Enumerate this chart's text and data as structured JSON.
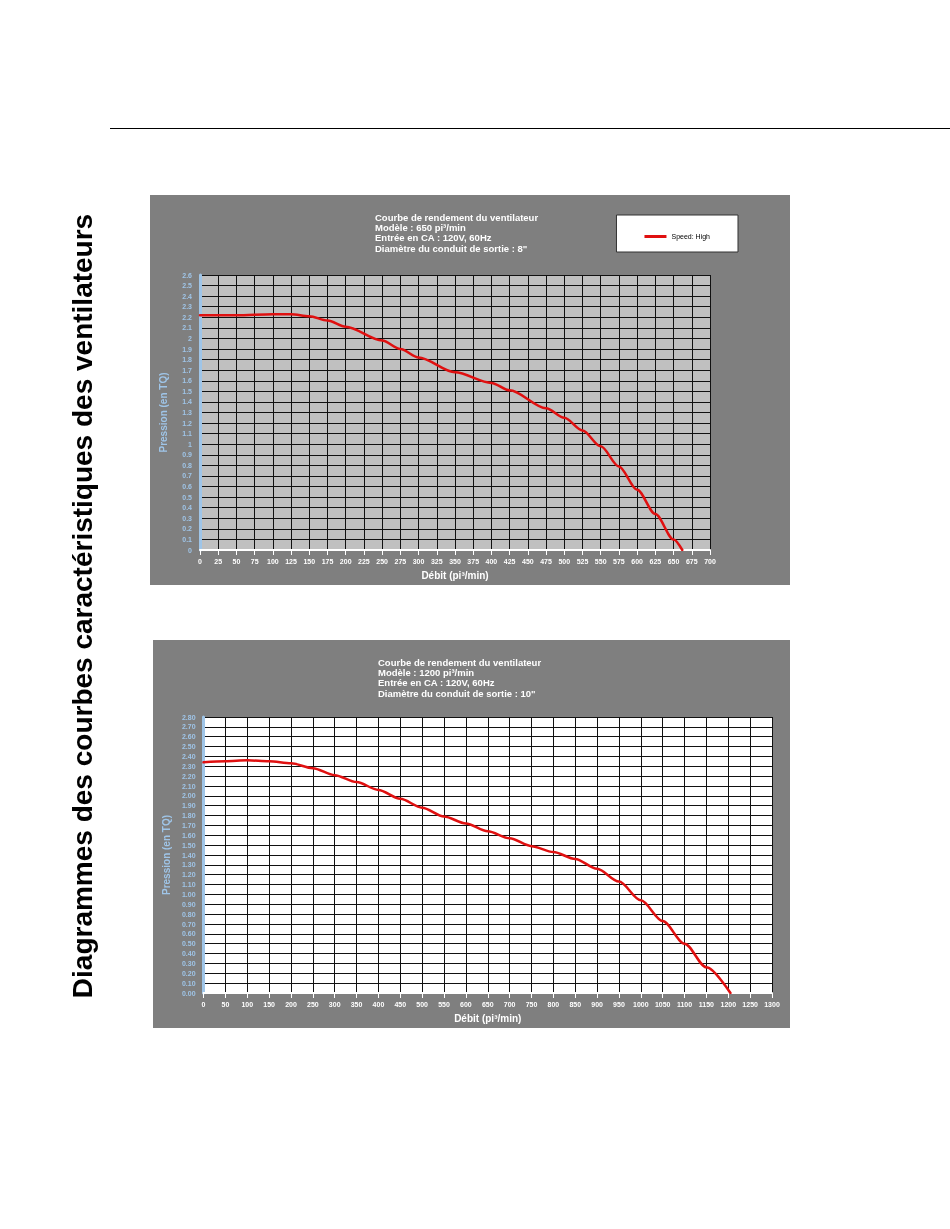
{
  "chart_data": [
    {
      "type": "line",
      "title": "Courbe de rendement du ventilateur",
      "subtitle": "Modèle : 650 pi³/min\nEntrée en CA : 120V, 60Hz\nDiamètre du conduit de sortie : 8\"",
      "xlabel": "Débit (pi³/min)",
      "ylabel": "Pression (en TQ)",
      "annotations": [
        "Diagrammes des courbes caractéristiques des ventilateurs"
      ],
      "series": [
        {
          "name": "Speed: High",
          "color": "#e01010",
          "x": [
            0,
            50,
            100,
            125,
            150,
            175,
            200,
            250,
            275,
            300,
            350,
            400,
            425,
            475,
            500,
            525,
            550,
            575,
            600,
            625,
            650,
            662
          ],
          "values": [
            2.22,
            2.22,
            2.23,
            2.23,
            2.21,
            2.17,
            2.11,
            1.98,
            1.9,
            1.82,
            1.68,
            1.58,
            1.51,
            1.34,
            1.25,
            1.13,
            0.98,
            0.79,
            0.57,
            0.34,
            0.1,
            0
          ]
        }
      ],
      "xlim": [
        0,
        700
      ],
      "xticks": [
        0,
        25,
        50,
        75,
        100,
        125,
        150,
        175,
        200,
        225,
        250,
        275,
        300,
        325,
        350,
        375,
        400,
        425,
        450,
        475,
        500,
        525,
        550,
        575,
        600,
        625,
        650,
        675,
        700
      ],
      "ylim": [
        0,
        2.6
      ],
      "yticks": [
        0,
        0.1,
        0.2,
        0.3,
        0.4,
        0.5,
        0.6,
        0.7,
        0.8,
        0.9,
        1,
        1.1,
        1.2,
        1.3,
        1.4,
        1.5,
        1.6,
        1.7,
        1.8,
        1.9,
        2,
        2.1,
        2.2,
        2.3,
        2.4,
        2.5,
        2.6
      ],
      "grid": true,
      "legend": "top right",
      "marker": "none",
      "line_style": "solid"
    },
    {
      "type": "line",
      "title": "Courbe de rendement du ventilateur",
      "subtitle": "Modèle : 1200 pi³/min\nEntrée en CA : 120V, 60Hz\nDiamètre du conduit de sortie : 10\"",
      "xlabel": "Débit (pi³/min)",
      "ylabel": "Pression (en TQ)",
      "series": [
        {
          "color": "#e01010",
          "x": [
            0,
            50,
            100,
            150,
            200,
            250,
            300,
            350,
            400,
            450,
            500,
            550,
            600,
            650,
            700,
            750,
            800,
            850,
            900,
            950,
            1000,
            1050,
            1100,
            1150,
            1205
          ],
          "values": [
            2.34,
            2.35,
            2.36,
            2.35,
            2.33,
            2.28,
            2.21,
            2.14,
            2.06,
            1.97,
            1.88,
            1.79,
            1.72,
            1.64,
            1.57,
            1.49,
            1.43,
            1.36,
            1.26,
            1.13,
            0.94,
            0.73,
            0.5,
            0.26,
            0
          ]
        }
      ],
      "xlim": [
        0,
        1300
      ],
      "xticks": [
        0,
        50,
        100,
        150,
        200,
        250,
        300,
        350,
        400,
        450,
        500,
        550,
        600,
        650,
        700,
        750,
        800,
        850,
        900,
        950,
        1000,
        1050,
        1100,
        1150,
        1200,
        1250,
        1300
      ],
      "ylim": [
        0,
        2.8
      ],
      "yticks": [
        {
          "value": 0,
          "label": "0.00"
        },
        {
          "value": 0.1,
          "label": "0.10"
        },
        {
          "value": 0.2,
          "label": "0.20"
        },
        {
          "value": 0.3,
          "label": "0.30"
        },
        {
          "value": 0.4,
          "label": "0.40"
        },
        {
          "value": 0.5,
          "label": "0.50"
        },
        {
          "value": 0.6,
          "label": "0.60"
        },
        {
          "value": 0.7,
          "label": "0.70"
        },
        {
          "value": 0.8,
          "label": "0.80"
        },
        {
          "value": 0.9,
          "label": "0.90"
        },
        {
          "value": 1,
          "label": "1.00"
        },
        {
          "value": 1.1,
          "label": "1.10"
        },
        {
          "value": 1.2,
          "label": "1.20"
        },
        {
          "value": 1.3,
          "label": "1.30"
        },
        {
          "value": 1.4,
          "label": "1.40"
        },
        {
          "value": 1.5,
          "label": "1.50"
        },
        {
          "value": 1.6,
          "label": "1.60"
        },
        {
          "value": 1.7,
          "label": "1.70"
        },
        {
          "value": 1.8,
          "label": "1.80"
        },
        {
          "value": 1.9,
          "label": "1.90"
        },
        {
          "value": 2,
          "label": "2.00"
        },
        {
          "value": 2.1,
          "label": "2.10"
        },
        {
          "value": 2.2,
          "label": "2.20"
        },
        {
          "value": 2.3,
          "label": "2.30"
        },
        {
          "value": 2.4,
          "label": "2.40"
        },
        {
          "value": 2.5,
          "label": "2.50"
        },
        {
          "value": 2.6,
          "label": "2.60"
        },
        {
          "value": 2.7,
          "label": "2.70"
        },
        {
          "value": 2.8,
          "label": "2.80"
        }
      ],
      "grid": true,
      "marker": "none",
      "line_style": "solid"
    }
  ]
}
